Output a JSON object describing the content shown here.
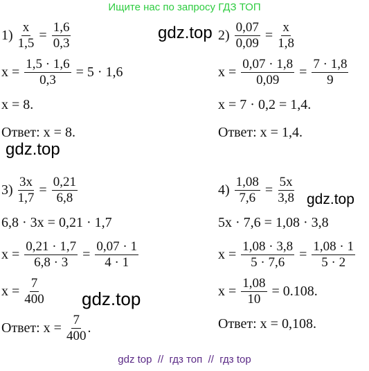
{
  "header": "Ищите нас по запросу ГДЗ ТОП",
  "watermarks": [
    "gdz.top",
    "gdz.top",
    "gdz.top",
    "gdz.top"
  ],
  "problems": [
    {
      "lines": [
        [
          "1) ",
          {
            "num": "x",
            "den": "1,5"
          },
          " = ",
          {
            "num": "1,6",
            "den": "0,3"
          }
        ],
        [
          "x = ",
          {
            "num": "1,5 · 1,6",
            "den": "0,3"
          },
          " = 5 · 1,6"
        ],
        [
          "x = 8."
        ],
        [
          "Ответ: x = 8."
        ]
      ]
    },
    {
      "lines": [
        [
          "2) ",
          {
            "num": "0,07",
            "den": "0,09"
          },
          " = ",
          {
            "num": "x",
            "den": "1,8"
          }
        ],
        [
          "x = ",
          {
            "num": "0,07 · 1,8",
            "den": "0,09"
          },
          " = ",
          {
            "num": "7 · 1,8",
            "den": "9"
          }
        ],
        [
          "x = 7 · 0,2 = 1,4."
        ],
        [
          "Ответ: x = 1,4."
        ]
      ]
    },
    {
      "lines": [
        [
          "3) ",
          {
            "num": "3x",
            "den": "1,7"
          },
          " = ",
          {
            "num": "0,21",
            "den": "6,8"
          }
        ],
        [
          "6,8 · 3x = 0,21 · 1,7"
        ],
        [
          "x = ",
          {
            "num": "0,21 · 1,7",
            "den": "6,8 · 3"
          },
          " = ",
          {
            "num": "0,07 · 1",
            "den": "4 · 1"
          }
        ],
        [
          "x = ",
          {
            "num": "7",
            "den": "400"
          }
        ],
        [
          "Ответ: x = ",
          {
            "num": "7",
            "den": "400"
          },
          "."
        ]
      ]
    },
    {
      "lines": [
        [
          "4) ",
          {
            "num": "1,08",
            "den": "7,6"
          },
          " = ",
          {
            "num": "5x",
            "den": "3,8"
          }
        ],
        [
          "5x · 7,6 = 1,08 · 3,8"
        ],
        [
          "x = ",
          {
            "num": "1,08 · 3,8",
            "den": "5 · 7,6"
          },
          " = ",
          {
            "num": "1,08 · 1",
            "den": "5 · 2"
          }
        ],
        [
          "x = ",
          {
            "num": "1,08",
            "den": "10"
          },
          " = 0.108."
        ],
        [
          "Ответ: x = 0,108."
        ]
      ]
    }
  ],
  "footer": "gdz top  //  гдз топ  //  гдз top"
}
